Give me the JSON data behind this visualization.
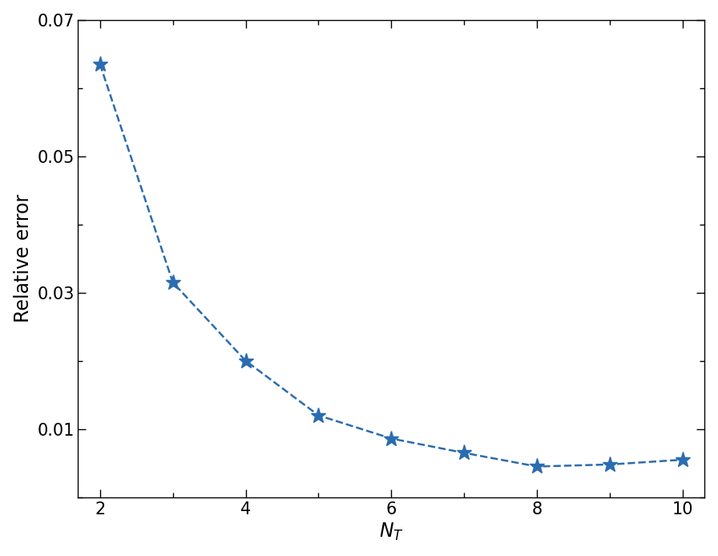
{
  "x": [
    2,
    3,
    4,
    5,
    6,
    7,
    8,
    9,
    10
  ],
  "y": [
    0.0635,
    0.0315,
    0.02,
    0.012,
    0.0086,
    0.0065,
    0.0045,
    0.0048,
    0.0055
  ],
  "line_color": "#2b6cb0",
  "marker": "*",
  "linestyle": "--",
  "linewidth": 1.8,
  "markersize": 14,
  "xlabel": "$N_T$",
  "ylabel": "Relative error",
  "xlim": [
    1.7,
    10.3
  ],
  "ylim": [
    0.0,
    0.07
  ],
  "yticks": [
    0.01,
    0.03,
    0.05,
    0.07
  ],
  "xticks": [
    2,
    4,
    6,
    8,
    10
  ],
  "xlabel_fontsize": 17,
  "ylabel_fontsize": 17,
  "tick_fontsize": 15,
  "background_color": "#ffffff"
}
